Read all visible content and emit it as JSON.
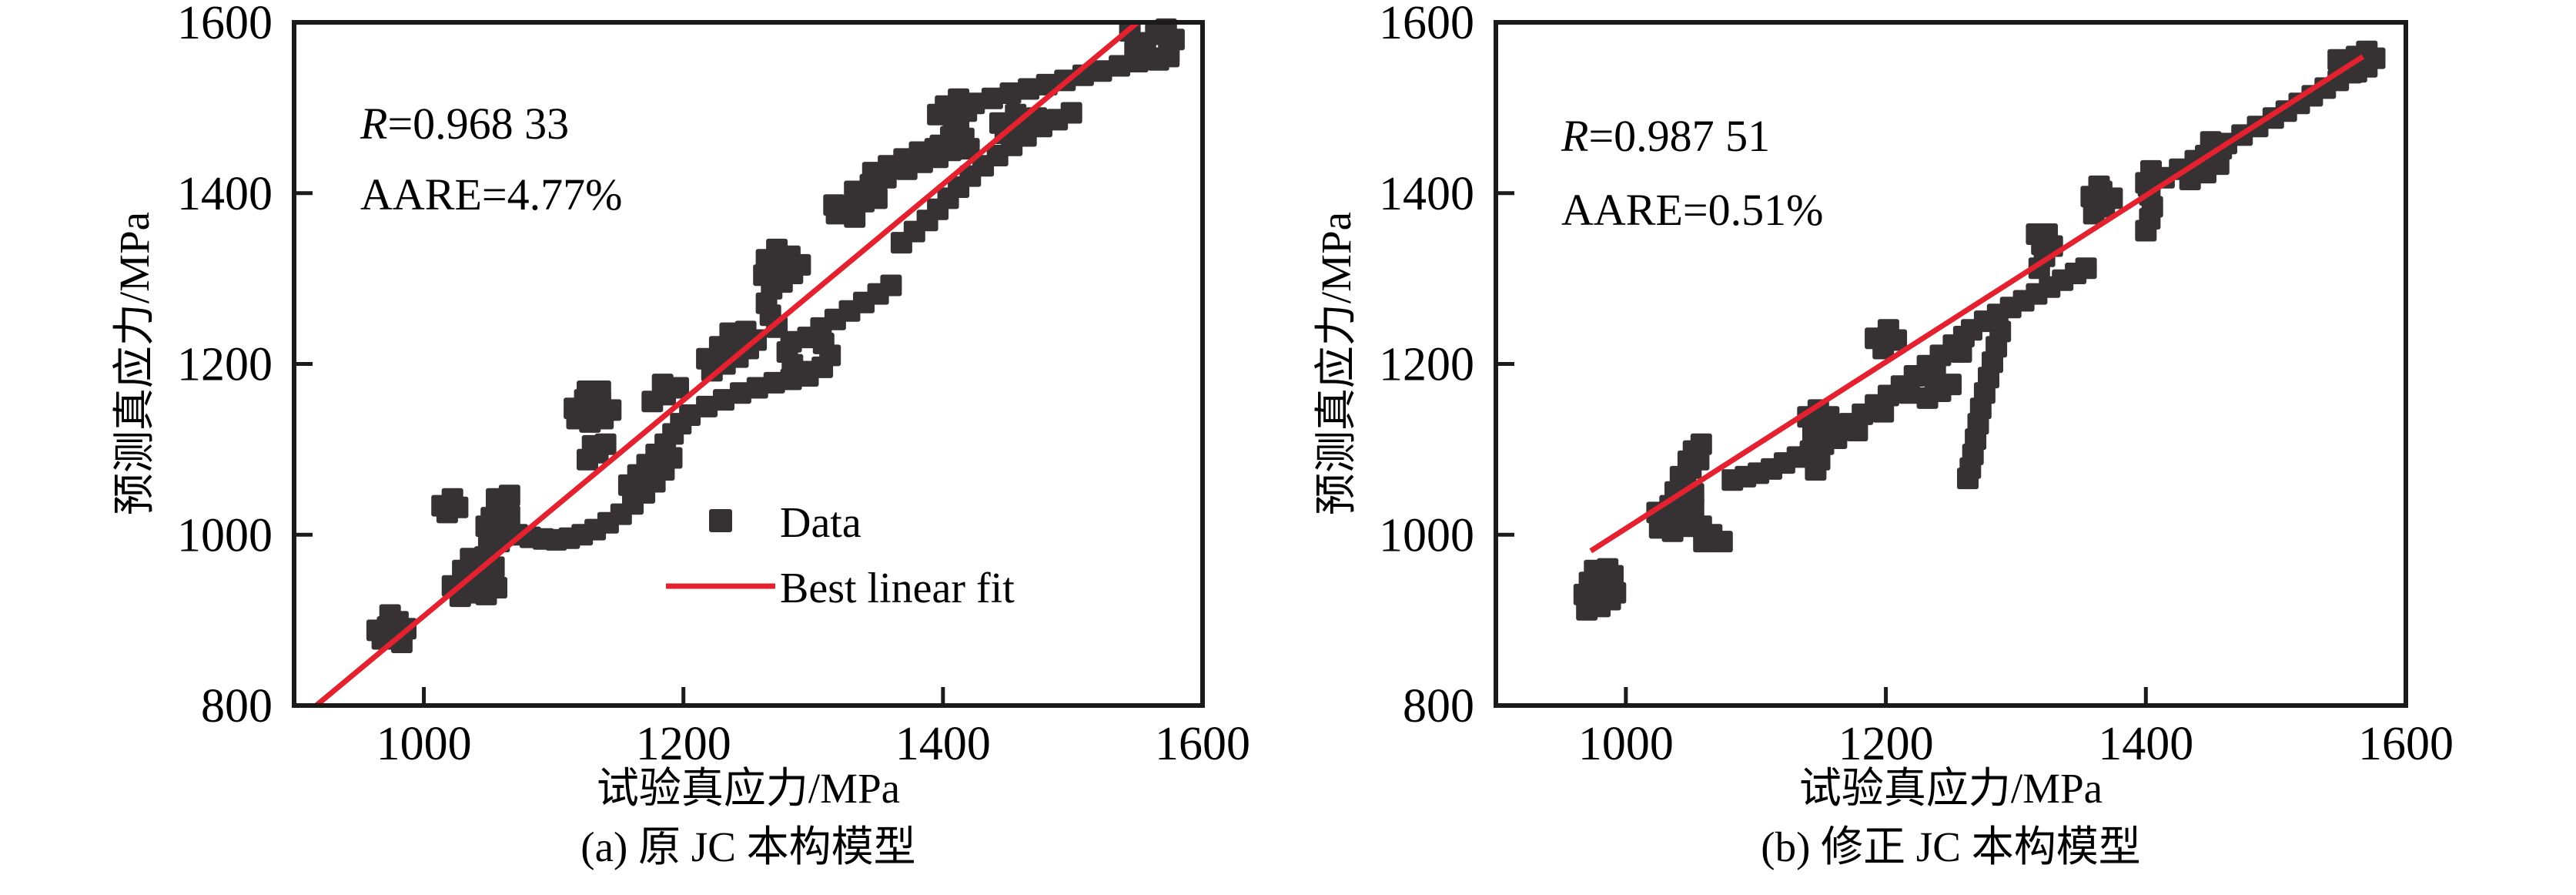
{
  "figure": {
    "colors": {
      "background": "#ffffff",
      "marker": "#363132",
      "fit_line": "#e4212e",
      "axis": "#1c1a1b",
      "text": "#000000"
    },
    "legend": {
      "data_label": "Data",
      "fit_label": "Best linear fit"
    }
  },
  "chart_data": [
    {
      "type": "scatter",
      "title": "(a) 原 JC 本构模型",
      "xlabel": "试验真应力/MPa",
      "ylabel": "预测真应力/MPa",
      "xlim": [
        900,
        1600
      ],
      "ylim": [
        800,
        1600
      ],
      "xticks": [
        1000,
        1200,
        1400,
        1600
      ],
      "yticks": [
        800,
        1000,
        1200,
        1400,
        1600
      ],
      "grid": false,
      "legend_visible": true,
      "legend_position": "center-right",
      "annotations": {
        "r_prefix": "R",
        "r_rest": "=0.968 33",
        "aare": "AARE=4.77%"
      },
      "fit_line": {
        "x1": 917,
        "y1": 800,
        "x2": 1550,
        "y2": 1600
      },
      "series": [
        {
          "name": "Data",
          "marker": "square"
        }
      ],
      "points": [
        [
          968,
          878
        ],
        [
          978,
          882
        ],
        [
          986,
          890
        ],
        [
          972,
          892
        ],
        [
          980,
          898
        ],
        [
          974,
          906
        ],
        [
          964,
          888
        ],
        [
          983,
          874
        ],
        [
          1028,
          928
        ],
        [
          1038,
          932
        ],
        [
          1048,
          930
        ],
        [
          1056,
          938
        ],
        [
          1044,
          942
        ],
        [
          1032,
          944
        ],
        [
          1022,
          940
        ],
        [
          1040,
          952
        ],
        [
          1052,
          950
        ],
        [
          1030,
          958
        ],
        [
          1042,
          962
        ],
        [
          1054,
          962
        ],
        [
          1036,
          972
        ],
        [
          1047,
          974
        ],
        [
          1050,
          986
        ],
        [
          1058,
          992
        ],
        [
          1064,
          1000
        ],
        [
          1056,
          1004
        ],
        [
          1048,
          1010
        ],
        [
          1060,
          1014
        ],
        [
          1066,
          1022
        ],
        [
          1058,
          1028
        ],
        [
          1052,
          1020
        ],
        [
          1062,
          1036
        ],
        [
          1056,
          1042
        ],
        [
          1066,
          1046
        ],
        [
          1018,
          1026
        ],
        [
          1026,
          1032
        ],
        [
          1022,
          1042
        ],
        [
          1014,
          1034
        ],
        [
          1072,
          1000
        ],
        [
          1082,
          997
        ],
        [
          1092,
          995
        ],
        [
          1102,
          994
        ],
        [
          1112,
          996
        ],
        [
          1122,
          1000
        ],
        [
          1132,
          1006
        ],
        [
          1142,
          1014
        ],
        [
          1152,
          1024
        ],
        [
          1161,
          1036
        ],
        [
          1170,
          1049
        ],
        [
          1178,
          1062
        ],
        [
          1185,
          1076
        ],
        [
          1191,
          1090
        ],
        [
          1118,
          1136
        ],
        [
          1128,
          1132
        ],
        [
          1138,
          1136
        ],
        [
          1144,
          1146
        ],
        [
          1136,
          1156
        ],
        [
          1124,
          1158
        ],
        [
          1116,
          1148
        ],
        [
          1132,
          1146
        ],
        [
          1126,
          1168
        ],
        [
          1136,
          1168
        ],
        [
          1126,
          1088
        ],
        [
          1134,
          1096
        ],
        [
          1140,
          1106
        ],
        [
          1130,
          1104
        ],
        [
          1158,
          1058
        ],
        [
          1165,
          1070
        ],
        [
          1172,
          1082
        ],
        [
          1179,
          1094
        ],
        [
          1186,
          1106
        ],
        [
          1192,
          1118
        ],
        [
          1198,
          1130
        ],
        [
          1176,
          1156
        ],
        [
          1186,
          1164
        ],
        [
          1196,
          1172
        ],
        [
          1184,
          1176
        ],
        [
          1205,
          1140
        ],
        [
          1218,
          1150
        ],
        [
          1231,
          1158
        ],
        [
          1244,
          1166
        ],
        [
          1257,
          1172
        ],
        [
          1270,
          1178
        ],
        [
          1283,
          1182
        ],
        [
          1296,
          1186
        ],
        [
          1222,
          1192
        ],
        [
          1232,
          1200
        ],
        [
          1242,
          1208
        ],
        [
          1250,
          1218
        ],
        [
          1240,
          1226
        ],
        [
          1228,
          1220
        ],
        [
          1236,
          1236
        ],
        [
          1248,
          1238
        ],
        [
          1256,
          1228
        ],
        [
          1218,
          1206
        ],
        [
          1280,
          1214
        ],
        [
          1284,
          1199
        ],
        [
          1295,
          1191
        ],
        [
          1307,
          1196
        ],
        [
          1313,
          1210
        ],
        [
          1308,
          1224
        ],
        [
          1296,
          1231
        ],
        [
          1283,
          1226
        ],
        [
          1272,
          1243
        ],
        [
          1267,
          1257
        ],
        [
          1264,
          1271
        ],
        [
          1268,
          1288
        ],
        [
          1276,
          1296
        ],
        [
          1284,
          1306
        ],
        [
          1290,
          1316
        ],
        [
          1282,
          1326
        ],
        [
          1272,
          1334
        ],
        [
          1264,
          1322
        ],
        [
          1274,
          1314
        ],
        [
          1262,
          1304
        ],
        [
          1306,
          1242
        ],
        [
          1317,
          1252
        ],
        [
          1328,
          1262
        ],
        [
          1339,
          1272
        ],
        [
          1350,
          1282
        ],
        [
          1360,
          1292
        ],
        [
          1368,
          1342
        ],
        [
          1378,
          1355
        ],
        [
          1388,
          1368
        ],
        [
          1396,
          1381
        ],
        [
          1404,
          1394
        ],
        [
          1412,
          1407
        ],
        [
          1421,
          1420
        ],
        [
          1431,
          1432
        ],
        [
          1442,
          1444
        ],
        [
          1453,
          1456
        ],
        [
          1464,
          1467
        ],
        [
          1476,
          1478
        ],
        [
          1488,
          1486
        ],
        [
          1499,
          1494
        ],
        [
          1318,
          1376
        ],
        [
          1328,
          1384
        ],
        [
          1339,
          1390
        ],
        [
          1349,
          1394
        ],
        [
          1332,
          1372
        ],
        [
          1316,
          1386
        ],
        [
          1332,
          1402
        ],
        [
          1344,
          1410
        ],
        [
          1356,
          1418
        ],
        [
          1346,
          1424
        ],
        [
          1358,
          1432
        ],
        [
          1370,
          1440
        ],
        [
          1382,
          1448
        ],
        [
          1394,
          1452
        ],
        [
          1406,
          1450
        ],
        [
          1396,
          1442
        ],
        [
          1384,
          1436
        ],
        [
          1372,
          1428
        ],
        [
          1398,
          1456
        ],
        [
          1406,
          1466
        ],
        [
          1412,
          1478
        ],
        [
          1408,
          1490
        ],
        [
          1402,
          1502
        ],
        [
          1412,
          1510
        ],
        [
          1418,
          1496
        ],
        [
          1416,
          1464
        ],
        [
          1420,
          1452
        ],
        [
          1396,
          1492
        ],
        [
          1410,
          1498
        ],
        [
          1424,
          1505
        ],
        [
          1438,
          1511
        ],
        [
          1452,
          1517
        ],
        [
          1466,
          1522
        ],
        [
          1480,
          1527
        ],
        [
          1494,
          1532
        ],
        [
          1508,
          1538
        ],
        [
          1522,
          1543
        ],
        [
          1536,
          1549
        ],
        [
          1550,
          1554
        ],
        [
          1562,
          1558
        ],
        [
          1574,
          1560
        ],
        [
          1448,
          1470
        ],
        [
          1460,
          1480
        ],
        [
          1472,
          1488
        ],
        [
          1456,
          1492
        ],
        [
          1444,
          1482
        ],
        [
          1548,
          1566
        ],
        [
          1556,
          1576
        ],
        [
          1564,
          1586
        ],
        [
          1572,
          1592
        ],
        [
          1578,
          1580
        ],
        [
          1574,
          1566
        ],
        [
          1566,
          1556
        ],
        [
          1544,
          1590
        ]
      ]
    },
    {
      "type": "scatter",
      "title": "(b) 修正 JC 本构模型",
      "xlabel": "试验真应力/MPa",
      "ylabel": "预测真应力/MPa",
      "xlim": [
        900,
        1600
      ],
      "ylim": [
        800,
        1600
      ],
      "xticks": [
        1000,
        1200,
        1400,
        1600
      ],
      "yticks": [
        800,
        1000,
        1200,
        1400,
        1600
      ],
      "grid": false,
      "legend_visible": false,
      "annotations": {
        "r_prefix": "R",
        "r_rest": "=0.987 51",
        "aare": "AARE=0.51%"
      },
      "fit_line": {
        "x1": 973,
        "y1": 981,
        "x2": 1567,
        "y2": 1560
      },
      "series": [
        {
          "name": "Data",
          "marker": "square"
        }
      ],
      "points": [
        [
          970,
          912
        ],
        [
          980,
          916
        ],
        [
          988,
          924
        ],
        [
          976,
          928
        ],
        [
          984,
          936
        ],
        [
          992,
          932
        ],
        [
          972,
          944
        ],
        [
          982,
          948
        ],
        [
          990,
          952
        ],
        [
          976,
          958
        ],
        [
          986,
          960
        ],
        [
          968,
          930
        ],
        [
          1026,
          1008
        ],
        [
          1036,
          1004
        ],
        [
          1046,
          1010
        ],
        [
          1030,
          1018
        ],
        [
          1040,
          1024
        ],
        [
          1050,
          1018
        ],
        [
          1058,
          1010
        ],
        [
          1066,
          1000
        ],
        [
          1074,
          992
        ],
        [
          1060,
          992
        ],
        [
          1034,
          1034
        ],
        [
          1044,
          1040
        ],
        [
          1052,
          1032
        ],
        [
          1038,
          1050
        ],
        [
          1046,
          1058
        ],
        [
          1052,
          1048
        ],
        [
          1042,
          1068
        ],
        [
          1050,
          1078
        ],
        [
          1056,
          1088
        ],
        [
          1052,
          1098
        ],
        [
          1058,
          1106
        ],
        [
          1048,
          1086
        ],
        [
          1024,
          1026
        ],
        [
          1082,
          1064
        ],
        [
          1092,
          1068
        ],
        [
          1102,
          1072
        ],
        [
          1112,
          1077
        ],
        [
          1122,
          1084
        ],
        [
          1132,
          1091
        ],
        [
          1142,
          1098
        ],
        [
          1152,
          1106
        ],
        [
          1162,
          1113
        ],
        [
          1146,
          1076
        ],
        [
          1149,
          1088
        ],
        [
          1147,
          1110
        ],
        [
          1144,
          1120
        ],
        [
          1148,
          1130
        ],
        [
          1156,
          1138
        ],
        [
          1148,
          1146
        ],
        [
          1140,
          1138
        ],
        [
          1162,
          1120
        ],
        [
          1172,
          1130
        ],
        [
          1182,
          1141
        ],
        [
          1192,
          1152
        ],
        [
          1202,
          1163
        ],
        [
          1212,
          1174
        ],
        [
          1222,
          1186
        ],
        [
          1232,
          1198
        ],
        [
          1242,
          1210
        ],
        [
          1252,
          1222
        ],
        [
          1260,
          1232
        ],
        [
          1178,
          1122
        ],
        [
          1198,
          1144
        ],
        [
          1218,
          1166
        ],
        [
          1238,
          1190
        ],
        [
          1258,
          1214
        ],
        [
          1198,
          1218
        ],
        [
          1208,
          1228
        ],
        [
          1202,
          1240
        ],
        [
          1192,
          1230
        ],
        [
          1232,
          1160
        ],
        [
          1242,
          1168
        ],
        [
          1250,
          1176
        ],
        [
          1238,
          1176
        ],
        [
          1288,
          1238
        ],
        [
          1285,
          1220
        ],
        [
          1282,
          1202
        ],
        [
          1279,
          1184
        ],
        [
          1276,
          1166
        ],
        [
          1273,
          1148
        ],
        [
          1271,
          1130
        ],
        [
          1269,
          1112
        ],
        [
          1267,
          1094
        ],
        [
          1265,
          1078
        ],
        [
          1263,
          1066
        ],
        [
          1266,
          1240
        ],
        [
          1276,
          1250
        ],
        [
          1286,
          1258
        ],
        [
          1296,
          1266
        ],
        [
          1306,
          1274
        ],
        [
          1316,
          1282
        ],
        [
          1326,
          1290
        ],
        [
          1336,
          1298
        ],
        [
          1346,
          1306
        ],
        [
          1354,
          1312
        ],
        [
          1318,
          1312
        ],
        [
          1322,
          1326
        ],
        [
          1320,
          1340
        ],
        [
          1316,
          1352
        ],
        [
          1324,
          1352
        ],
        [
          1328,
          1338
        ],
        [
          1360,
          1376
        ],
        [
          1368,
          1384
        ],
        [
          1374,
          1394
        ],
        [
          1366,
          1402
        ],
        [
          1358,
          1396
        ],
        [
          1364,
          1408
        ],
        [
          1400,
          1356
        ],
        [
          1403,
          1370
        ],
        [
          1405,
          1384
        ],
        [
          1403,
          1398
        ],
        [
          1400,
          1412
        ],
        [
          1404,
          1426
        ],
        [
          1402,
          1408
        ],
        [
          1414,
          1418
        ],
        [
          1426,
          1428
        ],
        [
          1438,
          1438
        ],
        [
          1450,
          1448
        ],
        [
          1462,
          1458
        ],
        [
          1474,
          1468
        ],
        [
          1486,
          1478
        ],
        [
          1498,
          1488
        ],
        [
          1434,
          1416
        ],
        [
          1446,
          1424
        ],
        [
          1456,
          1434
        ],
        [
          1440,
          1430
        ],
        [
          1446,
          1444
        ],
        [
          1458,
          1452
        ],
        [
          1450,
          1460
        ],
        [
          1508,
          1496
        ],
        [
          1518,
          1505
        ],
        [
          1528,
          1514
        ],
        [
          1538,
          1523
        ],
        [
          1548,
          1532
        ],
        [
          1558,
          1541
        ],
        [
          1566,
          1549
        ],
        [
          1554,
          1552
        ],
        [
          1562,
          1560
        ],
        [
          1570,
          1566
        ],
        [
          1576,
          1558
        ],
        [
          1570,
          1548
        ],
        [
          1562,
          1542
        ],
        [
          1548,
          1556
        ]
      ]
    }
  ]
}
